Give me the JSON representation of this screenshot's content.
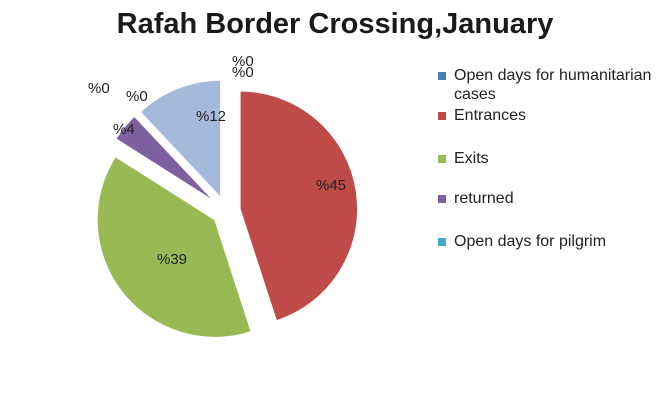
{
  "chart_data": {
    "type": "pie",
    "title": "Rafah Border Crossing,January",
    "slices": [
      {
        "name": "Open days for humanitarian cases",
        "value": 0,
        "label": "%0",
        "color": "#4a7ebb"
      },
      {
        "name": "Entrances",
        "value": 45,
        "label": "%45",
        "color": "#be4b48"
      },
      {
        "name": "Exits",
        "value": 39,
        "label": "%39",
        "color": "#98b954"
      },
      {
        "name": "returned",
        "value": 4,
        "label": "%4",
        "color": "#7d60a0"
      },
      {
        "name": "Open days for pilgrim",
        "value": 0,
        "label": "%0",
        "color": "#46aac5"
      },
      {
        "name": "",
        "value": 0,
        "label": "%0",
        "color": "#f79646"
      },
      {
        "name": "",
        "value": 12,
        "label": "%12",
        "color": "#a5b9db"
      },
      {
        "name": "",
        "value": 0,
        "label": "%0",
        "color": "#4a7ebb"
      }
    ],
    "legend_position": "right",
    "exploded": true
  },
  "legend": [
    {
      "label": "Open days for humanitarian cases",
      "color": "#4a7ebb"
    },
    {
      "label": "Entrances",
      "color": "#be4b48"
    },
    {
      "label": "Exits",
      "color": "#98b954"
    },
    {
      "label": "returned",
      "color": "#7d60a0"
    },
    {
      "label": "Open days for pilgrim",
      "color": "#46aac5"
    }
  ]
}
